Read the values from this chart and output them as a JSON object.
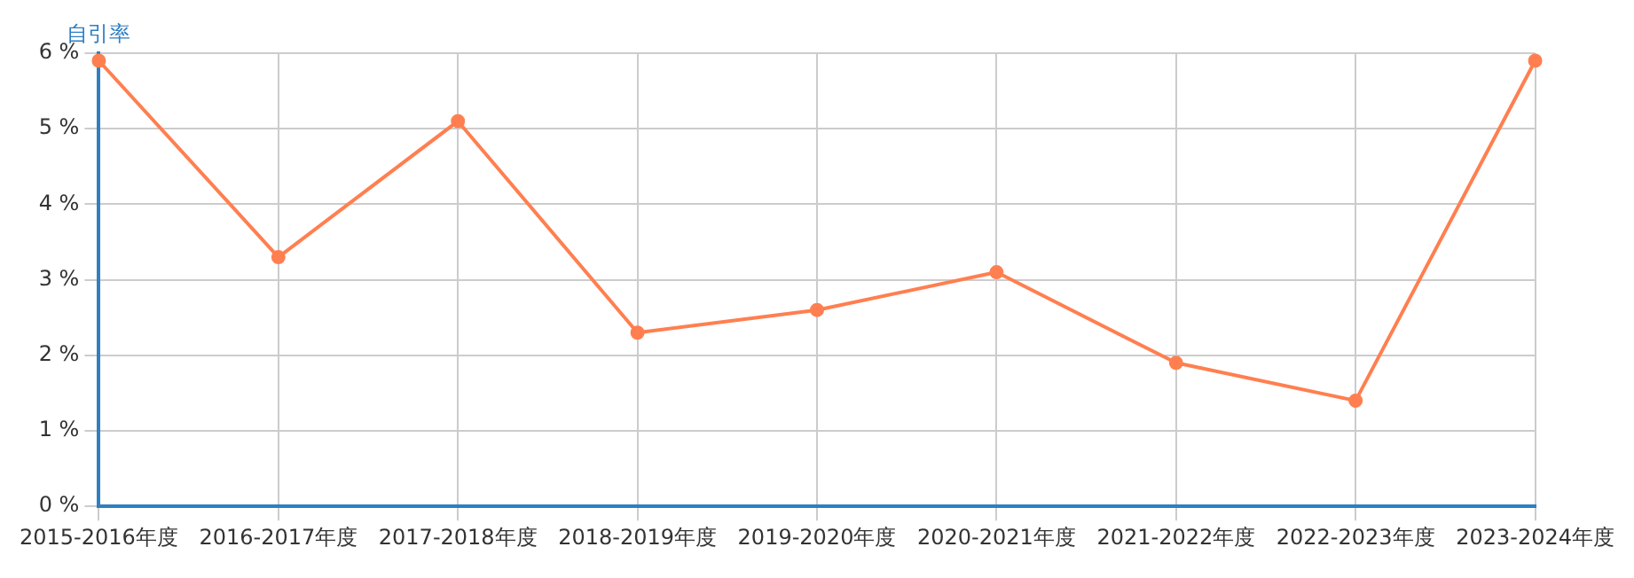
{
  "chart_data": {
    "type": "line",
    "ylabel": "自引率",
    "categories": [
      "2015-2016年度",
      "2016-2017年度",
      "2017-2018年度",
      "2018-2019年度",
      "2019-2020年度",
      "2020-2021年度",
      "2021-2022年度",
      "2022-2023年度",
      "2023-2024年度"
    ],
    "series": [
      {
        "color": "#ff7f50",
        "values": [
          5.9,
          3.3,
          5.1,
          2.3,
          2.6,
          3.1,
          1.9,
          1.4,
          5.9
        ]
      }
    ],
    "ylim": [
      0,
      6
    ],
    "yticks": [
      {
        "value": 0,
        "label": "0 %"
      },
      {
        "value": 1,
        "label": "1 %"
      },
      {
        "value": 2,
        "label": "2 %"
      },
      {
        "value": 3,
        "label": "3 %"
      },
      {
        "value": 4,
        "label": "4 %"
      },
      {
        "value": 5,
        "label": "5 %"
      },
      {
        "value": 6,
        "label": "6 %"
      }
    ],
    "grid": true,
    "marker": "circle",
    "line_style": "solid",
    "legend": false
  }
}
